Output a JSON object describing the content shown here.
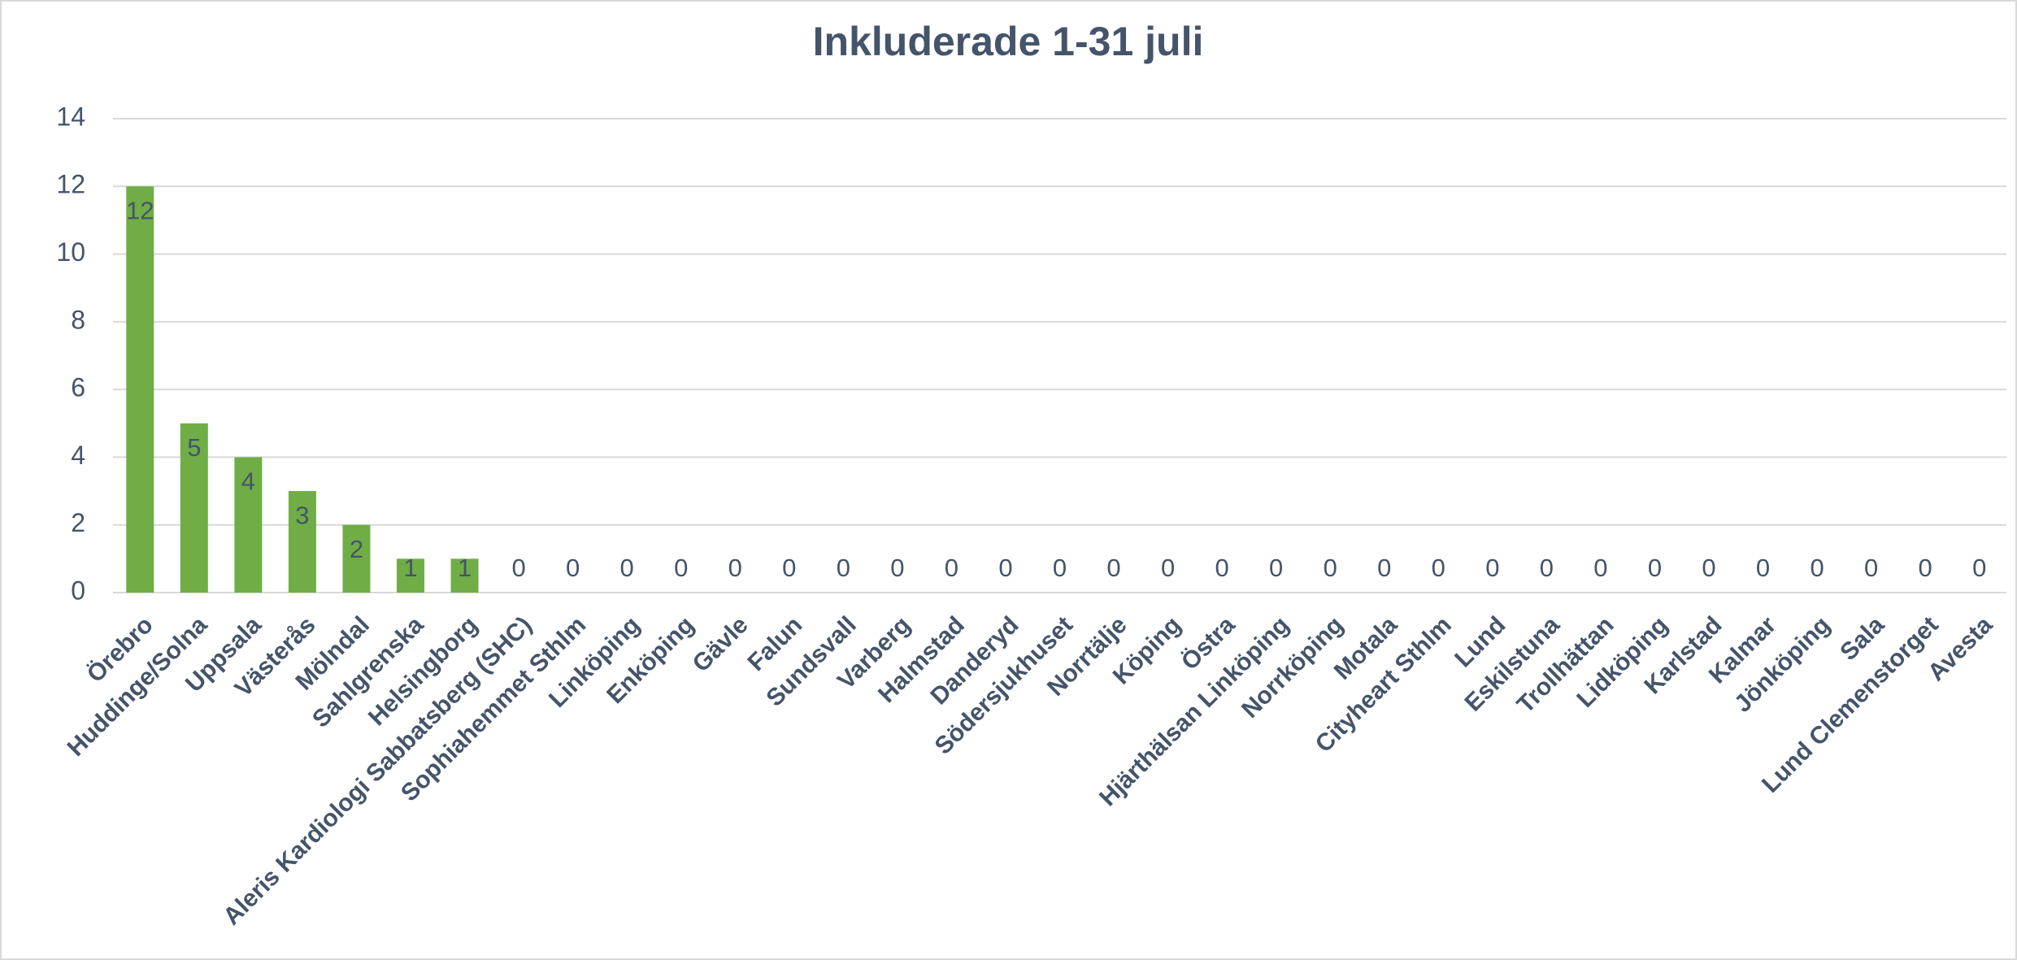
{
  "chart_data": {
    "type": "bar",
    "title": "Inkluderade 1-31 juli",
    "categories": [
      "Örebro",
      "Huddinge/Solna",
      "Uppsala",
      "Västerås",
      "Mölndal",
      "Sahlgrenska",
      "Helsingborg",
      "Aleris Kardiologi Sabbatsberg (SHC)",
      "Sophiahemmet Sthlm",
      "Linköping",
      "Enköping",
      "Gävle",
      "Falun",
      "Sundsvall",
      "Varberg",
      "Halmstad",
      "Danderyd",
      "Södersjukhuset",
      "Norrtälje",
      "Köping",
      "Östra",
      "Hjärthälsan Linköping",
      "Norrköping",
      "Motala",
      "Cityheart Sthlm",
      "Lund",
      "Eskilstuna",
      "Trollhättan",
      "Lidköping",
      "Karlstad",
      "Kalmar",
      "Jönköping",
      "Sala",
      "Lund Clemenstorget",
      "Avesta"
    ],
    "values": [
      12,
      5,
      4,
      3,
      2,
      1,
      1,
      0,
      0,
      0,
      0,
      0,
      0,
      0,
      0,
      0,
      0,
      0,
      0,
      0,
      0,
      0,
      0,
      0,
      0,
      0,
      0,
      0,
      0,
      0,
      0,
      0,
      0,
      0,
      0
    ],
    "color": "#70ad47",
    "ylim": [
      0,
      14
    ],
    "yticks": [
      0,
      2,
      4,
      6,
      8,
      10,
      12,
      14
    ],
    "grid": true
  }
}
